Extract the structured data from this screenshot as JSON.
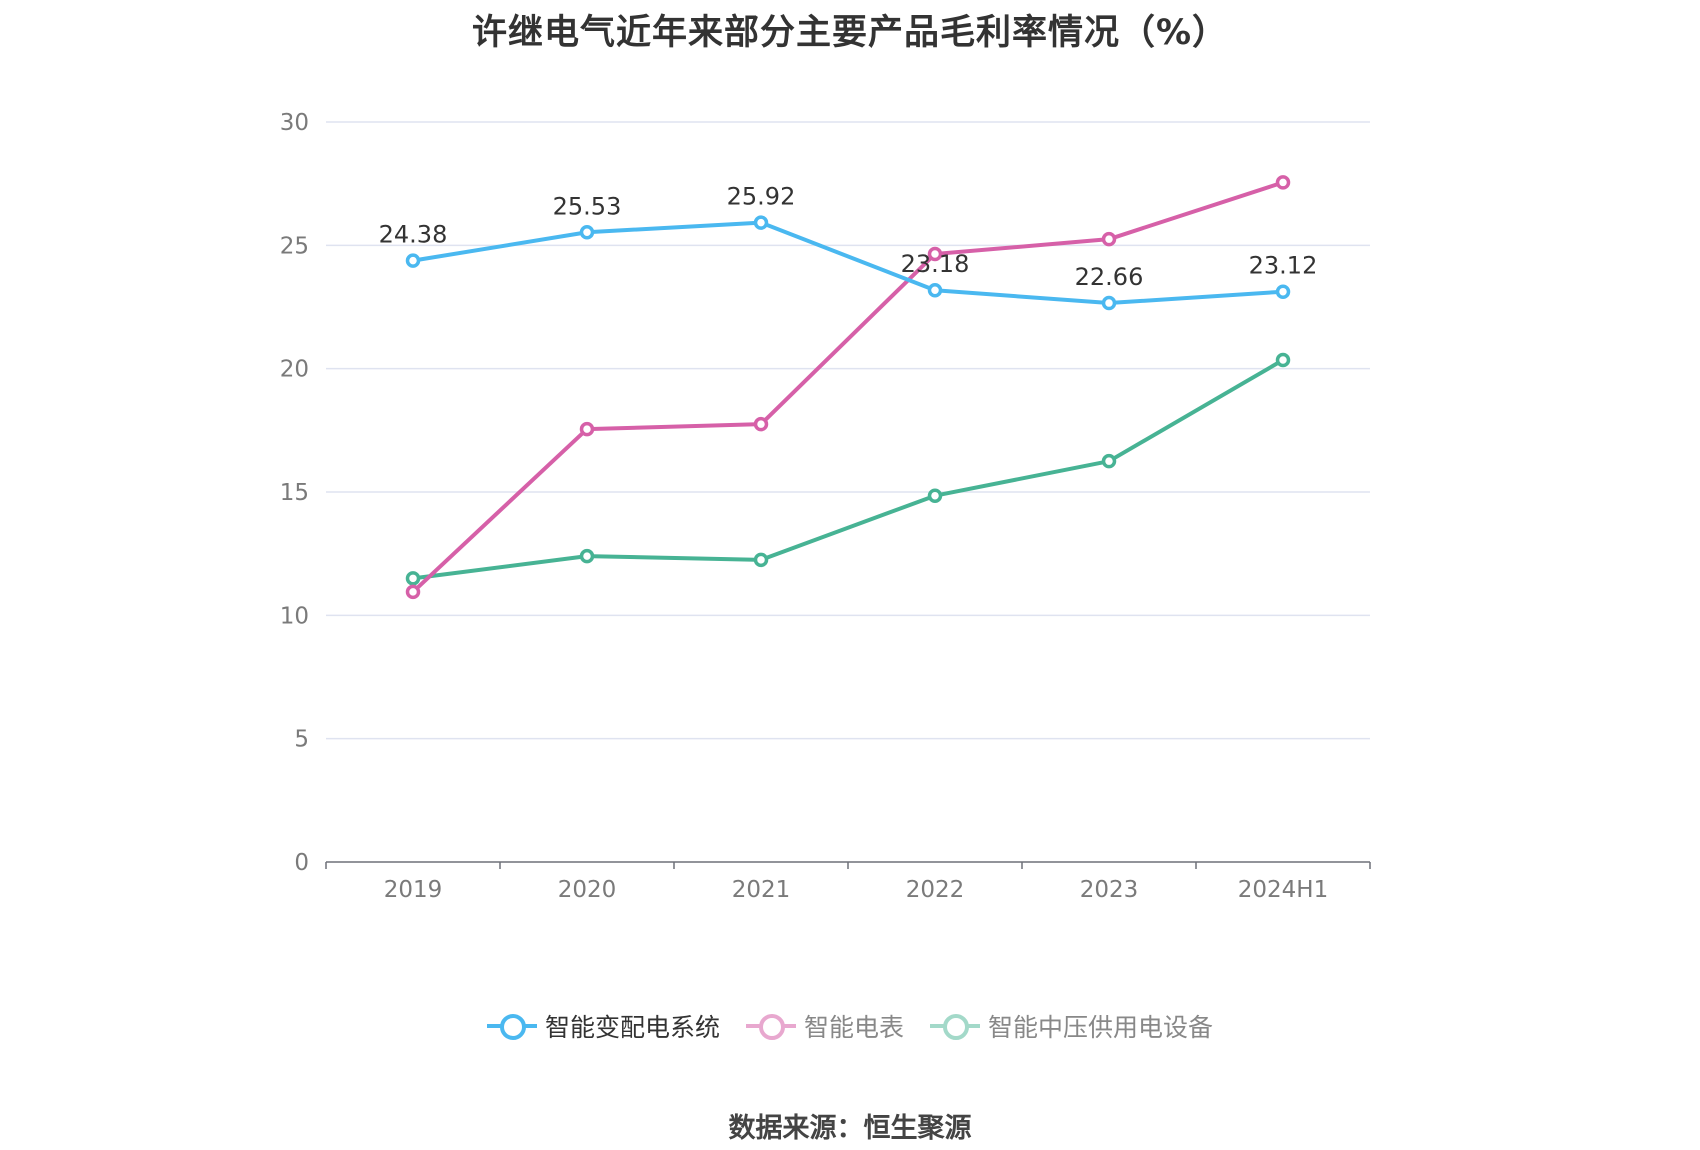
{
  "chart_data": {
    "type": "line",
    "title": "许继电气近年来部分主要产品毛利率情况（%）",
    "categories": [
      "2019",
      "2020",
      "2021",
      "2022",
      "2023",
      "2024H1"
    ],
    "ylim": [
      0,
      30
    ],
    "yticks": [
      "0",
      "5",
      "10",
      "15",
      "20",
      "25",
      "30"
    ],
    "grid": true,
    "legend_position": "bottom",
    "series": [
      {
        "name": "智能变配电系统",
        "color": "#4ab8f0",
        "values": [
          24.38,
          25.53,
          25.92,
          23.18,
          22.66,
          23.12
        ],
        "labels": [
          "24.38",
          "25.53",
          "25.92",
          "23.18",
          "22.66",
          "23.12"
        ]
      },
      {
        "name": "智能电表",
        "color": "#d660a8",
        "values": [
          10.95,
          17.55,
          17.75,
          24.65,
          25.25,
          27.55
        ]
      },
      {
        "name": "智能中压供用电设备",
        "color": "#47b394",
        "values": [
          11.5,
          12.4,
          12.25,
          14.85,
          16.25,
          20.35
        ]
      }
    ]
  },
  "source": "数据来源：恒生聚源"
}
